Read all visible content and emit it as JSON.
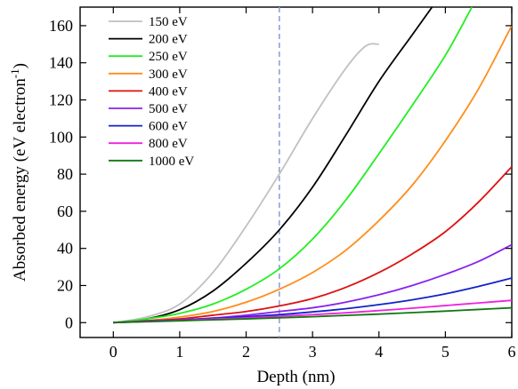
{
  "chart_data": {
    "type": "line",
    "title": "",
    "xlabel": "Depth (nm)",
    "ylabel": "Absorbed energy (eV electron⁻¹)",
    "xlim": [
      -0.5,
      6
    ],
    "ylim": [
      -8,
      170
    ],
    "x_ticks": [
      0,
      1,
      2,
      3,
      4,
      5,
      6
    ],
    "y_ticks": [
      0,
      20,
      40,
      60,
      80,
      100,
      120,
      140,
      160
    ],
    "grid": false,
    "legend_position": "top-left",
    "annotations": [
      {
        "type": "vertical-dashed-line",
        "x": 2.5,
        "color": "#8fa0e0"
      }
    ],
    "series": [
      {
        "name": "150 eV",
        "color": "#c0c0c0",
        "x": [
          0,
          0.5,
          1,
          1.5,
          2,
          2.5,
          3,
          3.5,
          3.8,
          4.0
        ],
        "y": [
          0,
          3,
          10,
          27,
          52,
          80,
          110,
          137,
          149,
          150
        ]
      },
      {
        "name": "200 eV",
        "color": "#000000",
        "x": [
          0,
          0.5,
          1,
          1.5,
          2,
          2.5,
          3,
          3.5,
          4,
          4.5,
          4.8
        ],
        "y": [
          0,
          2,
          7,
          17,
          32,
          50,
          73,
          101,
          130,
          155,
          170
        ]
      },
      {
        "name": "250 eV",
        "color": "#22ee22",
        "x": [
          0,
          0.5,
          1,
          1.5,
          2,
          2.5,
          3,
          3.5,
          4,
          4.5,
          5,
          5.4
        ],
        "y": [
          0,
          2,
          5,
          10,
          18,
          29,
          45,
          66,
          91,
          117,
          144,
          170
        ]
      },
      {
        "name": "300 eV",
        "color": "#ff8c1a",
        "x": [
          0,
          0.5,
          1,
          1.5,
          2,
          2.5,
          3,
          3.5,
          4,
          4.5,
          5,
          5.5,
          6
        ],
        "y": [
          0,
          1,
          3,
          6,
          11,
          18,
          27,
          39,
          55,
          74,
          98,
          126,
          160
        ]
      },
      {
        "name": "400 eV",
        "color": "#dd1111",
        "x": [
          0,
          0.5,
          1,
          1.5,
          2,
          2.5,
          3,
          3.5,
          4,
          4.5,
          5,
          5.5,
          6
        ],
        "y": [
          0,
          1,
          2,
          4,
          6,
          9,
          13,
          19,
          27,
          37,
          49,
          65,
          84
        ]
      },
      {
        "name": "500 eV",
        "color": "#8822ee",
        "x": [
          0,
          0.5,
          1,
          1.5,
          2,
          2.5,
          3,
          3.5,
          4,
          4.5,
          5,
          5.5,
          6
        ],
        "y": [
          0,
          0.8,
          1.5,
          2.5,
          4,
          6,
          8,
          11,
          15,
          20,
          26,
          33,
          42
        ]
      },
      {
        "name": "600 eV",
        "color": "#1122cc",
        "x": [
          0,
          0.5,
          1,
          1.5,
          2,
          2.5,
          3,
          3.5,
          4,
          4.5,
          5,
          5.5,
          6
        ],
        "y": [
          0,
          0.7,
          1.4,
          2.2,
          3.2,
          4.3,
          5.8,
          7.5,
          9.7,
          12.3,
          15.5,
          19.5,
          24
        ]
      },
      {
        "name": "800 eV",
        "color": "#ee22dd",
        "x": [
          0,
          0.5,
          1,
          1.5,
          2,
          2.5,
          3,
          3.5,
          4,
          4.5,
          5,
          5.5,
          6
        ],
        "y": [
          0,
          0.6,
          1.2,
          1.9,
          2.6,
          3.4,
          4.3,
          5.3,
          6.5,
          7.8,
          9.2,
          10.6,
          12
        ]
      },
      {
        "name": "1000 eV",
        "color": "#117711",
        "x": [
          0,
          0.5,
          1,
          1.5,
          2,
          2.5,
          3,
          3.5,
          4,
          4.5,
          5,
          5.5,
          6
        ],
        "y": [
          0,
          0.5,
          1.0,
          1.5,
          2.0,
          2.6,
          3.2,
          3.9,
          4.6,
          5.4,
          6.2,
          7.1,
          8
        ]
      }
    ]
  }
}
